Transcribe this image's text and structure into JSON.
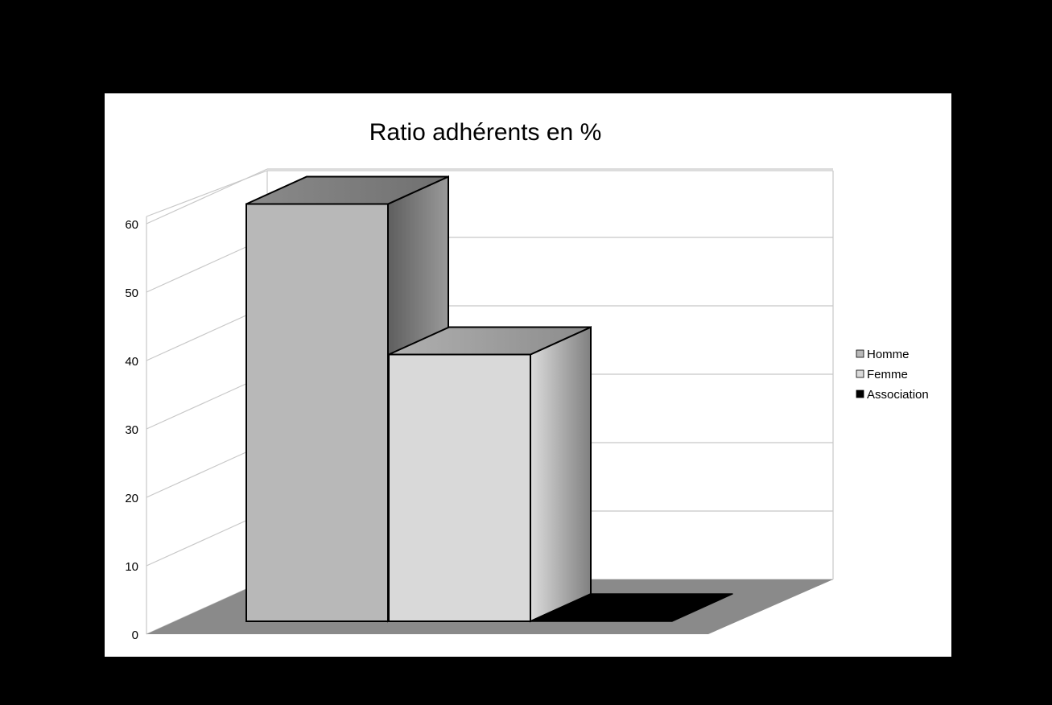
{
  "chart_data": {
    "type": "bar",
    "title": "Ratio adhérents en %",
    "xlabel": "",
    "ylabel": "",
    "ylim": [
      0,
      60
    ],
    "yticks": [
      0,
      10,
      20,
      30,
      40,
      50,
      60
    ],
    "grid": true,
    "legend_position": "right",
    "series": [
      {
        "name": "Homme",
        "values": [
          61
        ],
        "color": "#b8b8b8"
      },
      {
        "name": "Femme",
        "values": [
          39
        ],
        "color": "#d9d9d9"
      },
      {
        "name": "Association",
        "values": [
          0
        ],
        "color": "#000000"
      }
    ]
  }
}
